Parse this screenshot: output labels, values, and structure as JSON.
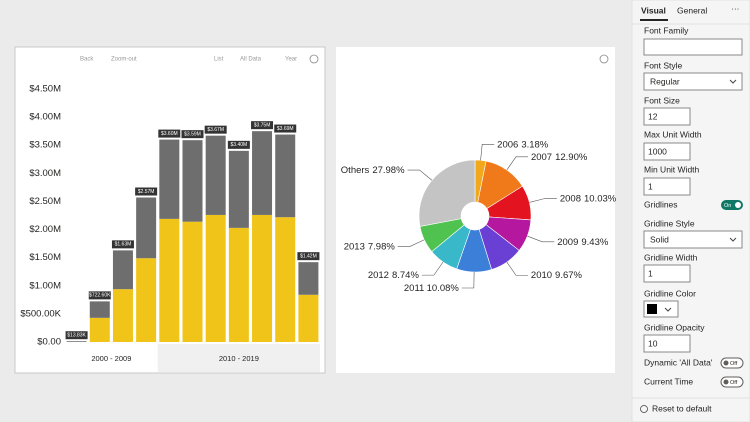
{
  "chart_data": [
    {
      "type": "bar",
      "toolbar": [
        "Back",
        "Zoom-out",
        "List",
        "All Data",
        "Year"
      ],
      "ylim": [
        0,
        4500000
      ],
      "yticks": [
        {
          "value": 0,
          "label": "$0.00"
        },
        {
          "value": 500000,
          "label": "$500.00K"
        },
        {
          "value": 1000000,
          "label": "$1.00M"
        },
        {
          "value": 1500000,
          "label": "$1.50M"
        },
        {
          "value": 2000000,
          "label": "$2.00M"
        },
        {
          "value": 2500000,
          "label": "$2.50M"
        },
        {
          "value": 3000000,
          "label": "$3.00M"
        },
        {
          "value": 3500000,
          "label": "$3.50M"
        },
        {
          "value": 4000000,
          "label": "$4.00M"
        },
        {
          "value": 4500000,
          "label": "$4.50M"
        }
      ],
      "colors": [
        "#f0c419",
        "#6e6e6e"
      ],
      "groups": [
        {
          "label": "2000 - 2009",
          "bars": [
            {
              "segments": [
                0,
                13830
              ],
              "total": 13830,
              "total_label": "$13.83K"
            },
            {
              "segments": [
                430000,
                292600
              ],
              "total": 722600,
              "total_label": "$722.60K"
            },
            {
              "segments": [
                940000,
                690000
              ],
              "total": 1630000,
              "total_label": "$1.63M"
            },
            {
              "segments": [
                1490000,
                1080000
              ],
              "total": 2570000,
              "total_label": "$2.57M"
            }
          ]
        },
        {
          "label": "2010 - 2019",
          "bars": [
            {
              "segments": [
                2190000,
                1410000
              ],
              "total": 3600000,
              "total_label": "$3.60M"
            },
            {
              "segments": [
                2140000,
                1450000
              ],
              "total": 3590000,
              "total_label": "$3.59M"
            },
            {
              "segments": [
                2260000,
                1410000
              ],
              "total": 3670000,
              "total_label": "$3.67M"
            },
            {
              "segments": [
                2030000,
                1370000
              ],
              "total": 3400000,
              "total_label": "$3.40M"
            },
            {
              "segments": [
                2260000,
                1490000
              ],
              "total": 3750000,
              "total_label": "$3.75M"
            },
            {
              "segments": [
                2220000,
                1470000
              ],
              "total": 3690000,
              "total_label": "$3.69M"
            },
            {
              "segments": [
                840000,
                580000
              ],
              "total": 1420000,
              "total_label": "$1.42M"
            }
          ]
        }
      ]
    },
    {
      "type": "pie",
      "segments": [
        {
          "name": "2006",
          "value": 3.18,
          "value_label": "3.18%",
          "color": "#f2a81d"
        },
        {
          "name": "2007",
          "value": 12.9,
          "value_label": "12.90%",
          "color": "#f07a1a"
        },
        {
          "name": "2008",
          "value": 10.03,
          "value_label": "10.03%",
          "color": "#e3141f"
        },
        {
          "name": "2009",
          "value": 9.43,
          "value_label": "9.43%",
          "color": "#b5179e"
        },
        {
          "name": "2010",
          "value": 9.67,
          "value_label": "9.67%",
          "color": "#6a3fd4"
        },
        {
          "name": "2011",
          "value": 10.08,
          "value_label": "10.08%",
          "color": "#3b7fd8"
        },
        {
          "name": "2012",
          "value": 8.74,
          "value_label": "8.74%",
          "color": "#38b8c8"
        },
        {
          "name": "2013",
          "value": 7.98,
          "value_label": "7.98%",
          "color": "#4fc24f"
        },
        {
          "name": "Others",
          "value": 27.98,
          "value_label": "27.98%",
          "color": "#c4c4c4"
        }
      ]
    }
  ],
  "panel": {
    "tabs": [
      "Visual",
      "General"
    ],
    "font_family": "Font Family",
    "font_style": {
      "label": "Font Style",
      "value": "Regular"
    },
    "font_size": {
      "label": "Font Size",
      "value": 12
    },
    "max_unit_width": {
      "label": "Max Unit Width",
      "value": 1000
    },
    "min_unit_width": {
      "label": "Min Unit Width",
      "value": 1
    },
    "gridlines": {
      "label": "Gridlines",
      "value": "On"
    },
    "gridline_style": {
      "label": "Gridline Style",
      "value": "Solid"
    },
    "gridline_width": {
      "label": "Gridline Width",
      "value": 1
    },
    "gridline_color": {
      "label": "Gridline Color",
      "color": "#000000"
    },
    "gridline_opacity": {
      "label": "Gridline Opacity",
      "value": 10
    },
    "dynamic_all_data": {
      "label": "Dynamic 'All Data'",
      "value": "Off"
    },
    "current_time": {
      "label": "Current Time",
      "value": "Off"
    },
    "reset": "Reset to default"
  }
}
